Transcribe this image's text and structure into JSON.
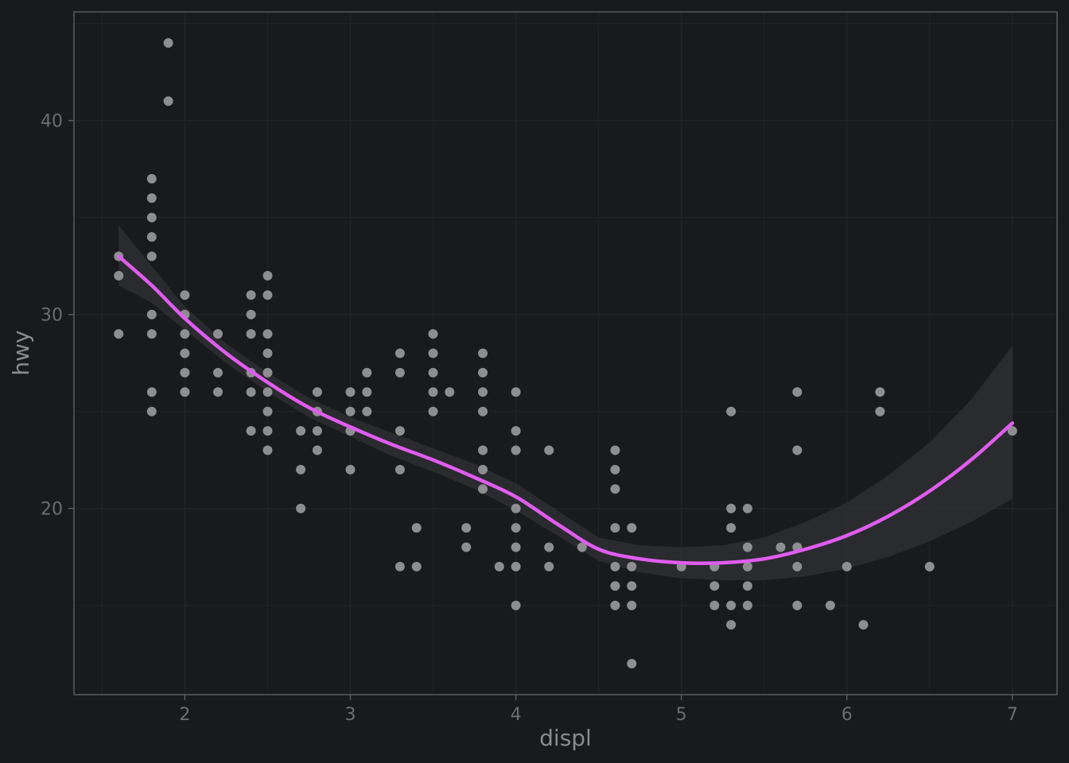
{
  "chart_data": {
    "type": "scatter",
    "title": "",
    "xlabel": "displ",
    "ylabel": "hwy",
    "xlim": [
      1.33,
      7.27
    ],
    "ylim": [
      10.4,
      45.6
    ],
    "x_ticks": [
      2,
      3,
      4,
      5,
      6,
      7
    ],
    "x_tick_labels": [
      "2",
      "3",
      "4",
      "5",
      "6",
      "7"
    ],
    "y_ticks": [
      20,
      30,
      40
    ],
    "y_tick_labels": [
      "20",
      "30",
      "40"
    ],
    "grid": true,
    "legend": "none",
    "colors": {
      "background": "#191a1c",
      "panel_border": "#5a5b5e",
      "grid": "#222326",
      "points": "#8e8e91",
      "smooth_line": "#e05cf0",
      "ribbon": "#2e2f31"
    },
    "points": [
      [
        1.6,
        33
      ],
      [
        1.6,
        32
      ],
      [
        1.6,
        29
      ],
      [
        1.8,
        37
      ],
      [
        1.8,
        36
      ],
      [
        1.8,
        35
      ],
      [
        1.8,
        34
      ],
      [
        1.8,
        33
      ],
      [
        1.8,
        30
      ],
      [
        1.8,
        29
      ],
      [
        1.8,
        26
      ],
      [
        1.8,
        25
      ],
      [
        1.9,
        44
      ],
      [
        1.9,
        41
      ],
      [
        2.0,
        31
      ],
      [
        2.0,
        30
      ],
      [
        2.0,
        29
      ],
      [
        2.0,
        28
      ],
      [
        2.0,
        27
      ],
      [
        2.0,
        26
      ],
      [
        2.2,
        29
      ],
      [
        2.2,
        27
      ],
      [
        2.2,
        26
      ],
      [
        2.4,
        31
      ],
      [
        2.4,
        30
      ],
      [
        2.4,
        29
      ],
      [
        2.4,
        27
      ],
      [
        2.4,
        26
      ],
      [
        2.4,
        24
      ],
      [
        2.5,
        32
      ],
      [
        2.5,
        31
      ],
      [
        2.5,
        29
      ],
      [
        2.5,
        28
      ],
      [
        2.5,
        27
      ],
      [
        2.5,
        26
      ],
      [
        2.5,
        25
      ],
      [
        2.5,
        24
      ],
      [
        2.5,
        23
      ],
      [
        2.7,
        24
      ],
      [
        2.7,
        22
      ],
      [
        2.7,
        20
      ],
      [
        2.8,
        26
      ],
      [
        2.8,
        25
      ],
      [
        2.8,
        24
      ],
      [
        2.8,
        23
      ],
      [
        3.0,
        26
      ],
      [
        3.0,
        25
      ],
      [
        3.0,
        24
      ],
      [
        3.0,
        22
      ],
      [
        3.1,
        27
      ],
      [
        3.1,
        26
      ],
      [
        3.1,
        25
      ],
      [
        3.3,
        28
      ],
      [
        3.3,
        27
      ],
      [
        3.3,
        24
      ],
      [
        3.3,
        22
      ],
      [
        3.3,
        17
      ],
      [
        3.4,
        19
      ],
      [
        3.4,
        17
      ],
      [
        3.5,
        29
      ],
      [
        3.5,
        28
      ],
      [
        3.5,
        27
      ],
      [
        3.5,
        26
      ],
      [
        3.5,
        25
      ],
      [
        3.6,
        26
      ],
      [
        3.7,
        19
      ],
      [
        3.7,
        18
      ],
      [
        3.8,
        28
      ],
      [
        3.8,
        27
      ],
      [
        3.8,
        26
      ],
      [
        3.8,
        25
      ],
      [
        3.8,
        23
      ],
      [
        3.8,
        22
      ],
      [
        3.8,
        21
      ],
      [
        3.9,
        17
      ],
      [
        4.0,
        26
      ],
      [
        4.0,
        24
      ],
      [
        4.0,
        23
      ],
      [
        4.0,
        20
      ],
      [
        4.0,
        19
      ],
      [
        4.0,
        18
      ],
      [
        4.0,
        17
      ],
      [
        4.0,
        15
      ],
      [
        4.2,
        23
      ],
      [
        4.2,
        18
      ],
      [
        4.2,
        17
      ],
      [
        4.4,
        18
      ],
      [
        4.6,
        23
      ],
      [
        4.6,
        22
      ],
      [
        4.6,
        21
      ],
      [
        4.6,
        19
      ],
      [
        4.6,
        17
      ],
      [
        4.6,
        16
      ],
      [
        4.6,
        15
      ],
      [
        4.7,
        19
      ],
      [
        4.7,
        17
      ],
      [
        4.7,
        16
      ],
      [
        4.7,
        15
      ],
      [
        4.7,
        12
      ],
      [
        5.0,
        17
      ],
      [
        5.2,
        17
      ],
      [
        5.2,
        16
      ],
      [
        5.2,
        15
      ],
      [
        5.3,
        25
      ],
      [
        5.3,
        20
      ],
      [
        5.3,
        19
      ],
      [
        5.3,
        15
      ],
      [
        5.3,
        14
      ],
      [
        5.4,
        20
      ],
      [
        5.4,
        18
      ],
      [
        5.4,
        17
      ],
      [
        5.4,
        16
      ],
      [
        5.4,
        15
      ],
      [
        5.6,
        18
      ],
      [
        5.7,
        26
      ],
      [
        5.7,
        23
      ],
      [
        5.7,
        18
      ],
      [
        5.7,
        17
      ],
      [
        5.7,
        15
      ],
      [
        5.9,
        15
      ],
      [
        6.0,
        17
      ],
      [
        6.1,
        14
      ],
      [
        6.2,
        26
      ],
      [
        6.2,
        25
      ],
      [
        6.5,
        17
      ],
      [
        7.0,
        24
      ]
    ],
    "smooth": {
      "method": "loess",
      "x": [
        1.6,
        1.8,
        2.0,
        2.25,
        2.5,
        2.75,
        3.0,
        3.25,
        3.5,
        3.75,
        4.0,
        4.25,
        4.5,
        4.75,
        5.0,
        5.25,
        5.5,
        5.75,
        6.0,
        6.25,
        6.5,
        6.75,
        7.0
      ],
      "y": [
        33.0,
        31.5,
        29.8,
        28.0,
        26.5,
        25.2,
        24.2,
        23.3,
        22.5,
        21.6,
        20.6,
        19.2,
        17.9,
        17.4,
        17.2,
        17.2,
        17.4,
        17.9,
        18.6,
        19.6,
        20.9,
        22.5,
        24.4
      ],
      "lower": [
        31.5,
        30.6,
        29.2,
        27.5,
        26.0,
        24.7,
        23.7,
        22.7,
        21.9,
        21.0,
        19.9,
        18.6,
        17.3,
        16.7,
        16.4,
        16.3,
        16.3,
        16.5,
        16.9,
        17.5,
        18.3,
        19.3,
        20.5
      ],
      "upper": [
        34.6,
        32.5,
        30.4,
        28.5,
        27.0,
        25.7,
        24.7,
        23.9,
        23.1,
        22.3,
        21.3,
        19.9,
        18.5,
        18.1,
        18.0,
        18.1,
        18.5,
        19.3,
        20.3,
        21.7,
        23.4,
        25.6,
        28.4
      ]
    }
  }
}
